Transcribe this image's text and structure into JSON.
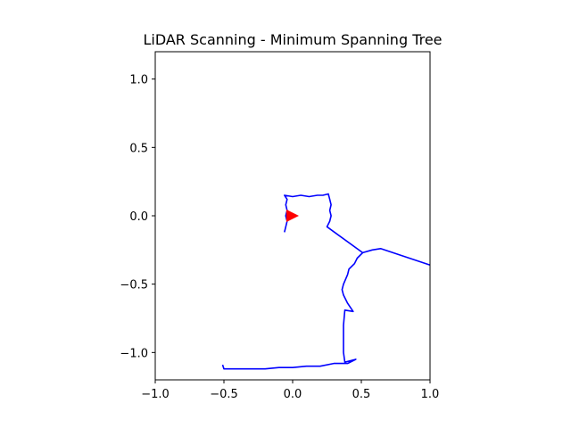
{
  "chart_data": {
    "type": "line",
    "title": "LiDAR Scanning - Minimum Spanning Tree",
    "xlabel": "",
    "ylabel": "",
    "xlim": [
      -1.0,
      1.0
    ],
    "ylim": [
      -1.2,
      1.2
    ],
    "xticks": [
      -1.0,
      -0.5,
      0.0,
      0.5,
      1.0
    ],
    "xtick_labels": [
      "−1.0",
      "−0.5",
      "0.0",
      "0.5",
      "1.0"
    ],
    "yticks": [
      -1.0,
      -0.5,
      0.0,
      0.5,
      1.0
    ],
    "ytick_labels": [
      "−1.0",
      "−0.5",
      "0.0",
      "0.5",
      "1.0"
    ],
    "grid": false,
    "aspect": "equal",
    "series": [
      {
        "color": "#0000ff",
        "points": [
          [
            -0.06,
            -0.12
          ],
          [
            -0.05,
            -0.08
          ],
          [
            -0.04,
            -0.04
          ],
          [
            -0.05,
            0.0
          ],
          [
            -0.04,
            0.04
          ],
          [
            -0.05,
            0.08
          ],
          [
            -0.04,
            0.12
          ],
          [
            -0.06,
            0.15
          ],
          [
            0.0,
            0.14
          ],
          [
            0.06,
            0.15
          ],
          [
            0.12,
            0.14
          ],
          [
            0.18,
            0.15
          ],
          [
            0.22,
            0.15
          ],
          [
            0.26,
            0.16
          ],
          [
            0.27,
            0.12
          ],
          [
            0.28,
            0.08
          ],
          [
            0.27,
            0.04
          ],
          [
            0.28,
            0.0
          ],
          [
            0.27,
            -0.04
          ],
          [
            0.25,
            -0.08
          ],
          [
            0.51,
            -0.27
          ],
          [
            0.47,
            -0.31
          ],
          [
            0.45,
            -0.35
          ],
          [
            0.41,
            -0.39
          ],
          [
            0.4,
            -0.43
          ],
          [
            0.37,
            -0.5
          ],
          [
            0.36,
            -0.54
          ],
          [
            0.37,
            -0.58
          ],
          [
            0.4,
            -0.64
          ],
          [
            0.44,
            -0.7
          ],
          [
            0.38,
            -0.69
          ],
          [
            0.37,
            -0.8
          ],
          [
            0.37,
            -0.9
          ],
          [
            0.37,
            -1.0
          ],
          [
            0.38,
            -1.07
          ],
          [
            0.46,
            -1.05
          ],
          [
            0.4,
            -1.08
          ],
          [
            0.3,
            -1.08
          ],
          [
            0.2,
            -1.1
          ],
          [
            0.1,
            -1.1
          ],
          [
            0.0,
            -1.11
          ],
          [
            -0.1,
            -1.11
          ],
          [
            -0.2,
            -1.12
          ],
          [
            -0.3,
            -1.12
          ],
          [
            -0.4,
            -1.12
          ],
          [
            -0.5,
            -1.12
          ],
          [
            -0.51,
            -1.09
          ]
        ]
      },
      {
        "color": "#0000ff",
        "points": [
          [
            0.51,
            -0.27
          ],
          [
            0.58,
            -0.25
          ],
          [
            0.64,
            -0.24
          ],
          [
            1.0,
            -0.36
          ]
        ]
      }
    ],
    "markers": [
      {
        "shape": "triangle-right",
        "x": 0.0,
        "y": 0.0,
        "color": "#ff0000"
      }
    ]
  }
}
